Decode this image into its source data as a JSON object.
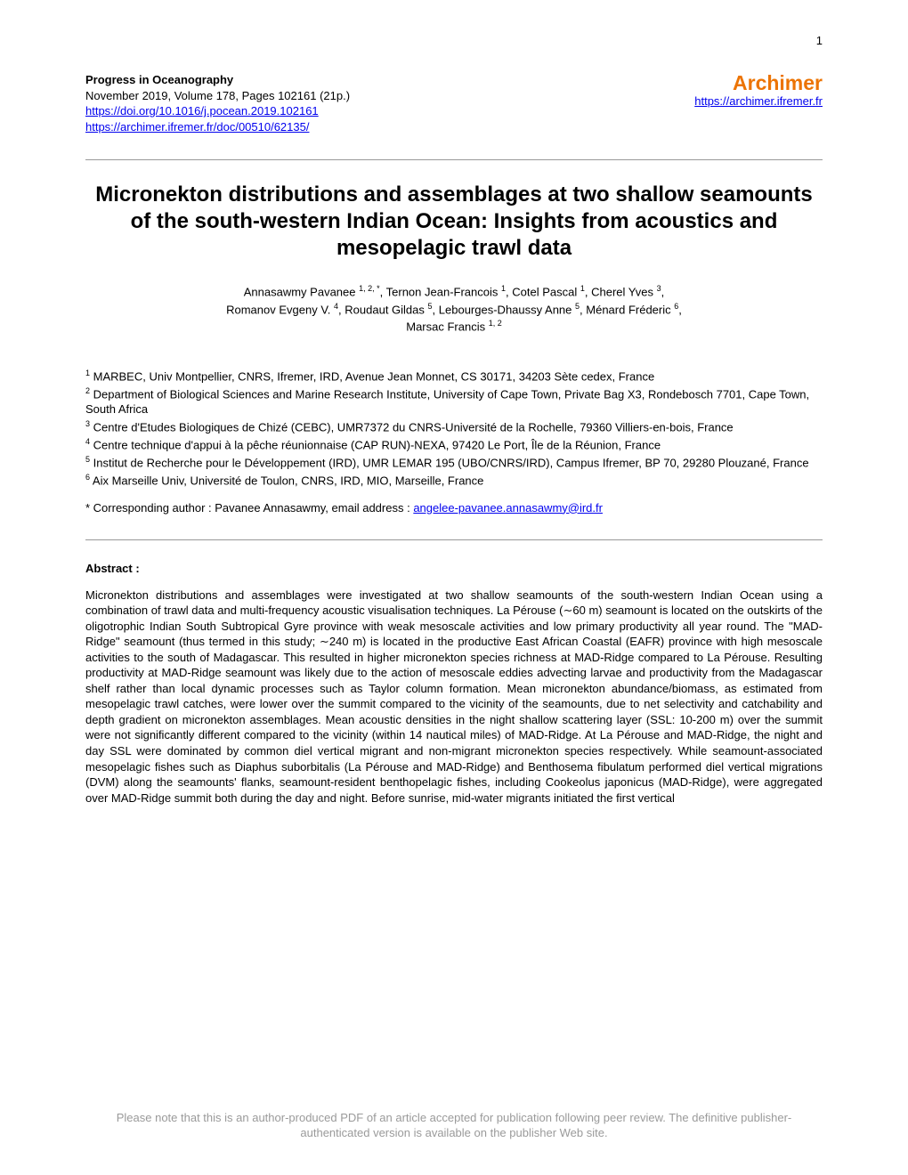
{
  "page_number": "1",
  "journal": {
    "name": "Progress in Oceanography",
    "issue": "November 2019, Volume 178, Pages 102161 (21p.)",
    "doi_link": "https://doi.org/10.1016/j.pocean.2019.102161",
    "archimer_doc_link": "https://archimer.ifremer.fr/doc/00510/62135/"
  },
  "archimer": {
    "title": "Archimer",
    "link": "https://archimer.ifremer.fr",
    "title_color": "#ec7404"
  },
  "title": "Micronekton distributions and assemblages at two shallow seamounts of the south-western Indian Ocean: Insights from acoustics and mesopelagic trawl data",
  "authors": {
    "a1": {
      "name": "Annasawmy Pavanee",
      "sup": "1, 2, *"
    },
    "a2": {
      "name": "Ternon Jean-Francois",
      "sup": "1"
    },
    "a3": {
      "name": "Cotel Pascal",
      "sup": "1"
    },
    "a4": {
      "name": "Cherel Yves",
      "sup": "3"
    },
    "a5": {
      "name": "Romanov Evgeny V.",
      "sup": "4"
    },
    "a6": {
      "name": "Roudaut Gildas",
      "sup": "5"
    },
    "a7": {
      "name": "Lebourges-Dhaussy Anne",
      "sup": "5"
    },
    "a8": {
      "name": "Ménard Fréderic",
      "sup": "6"
    },
    "a9": {
      "name": "Marsac Francis",
      "sup": "1, 2"
    }
  },
  "affiliations": {
    "aff1_sup": "1",
    "aff1": " MARBEC, Univ Montpellier, CNRS, Ifremer, IRD, Avenue Jean Monnet, CS 30171, 34203 Sète cedex, France",
    "aff2_sup": "2",
    "aff2": " Department of Biological Sciences and Marine Research Institute, University of Cape Town, Private Bag X3, Rondebosch 7701, Cape Town, South Africa",
    "aff3_sup": "3",
    "aff3": " Centre d'Etudes Biologiques de Chizé (CEBC), UMR7372 du CNRS-Université de la Rochelle, 79360 Villiers-en-bois, France",
    "aff4_sup": "4",
    "aff4": " Centre technique d'appui à la pêche réunionnaise (CAP RUN)-NEXA, 97420 Le Port, Île de la Réunion, France",
    "aff5_sup": "5",
    "aff5": " Institut de Recherche pour le Développement (IRD), UMR LEMAR 195 (UBO/CNRS/IRD), Campus Ifremer, BP 70, 29280 Plouzané, France",
    "aff6_sup": "6",
    "aff6": " Aix Marseille Univ, Université de Toulon, CNRS, IRD, MIO, Marseille, France"
  },
  "correspondence": {
    "prefix": "* Corresponding author : Pavanee Annasawmy, email address : ",
    "email": "angelee-pavanee.annasawmy@ird.fr"
  },
  "abstract": {
    "heading": "Abstract :",
    "body": "Micronekton distributions and assemblages were investigated at two shallow seamounts of the south-western Indian Ocean using a combination of trawl data and multi-frequency acoustic visualisation techniques. La Pérouse (∼60 m) seamount is located on the outskirts of the oligotrophic Indian South Subtropical Gyre province with weak mesoscale activities and low primary productivity all year round. The \"MAD-Ridge\" seamount (thus termed in this study; ∼240 m) is located in the productive East African Coastal (EAFR) province with high mesoscale activities to the south of Madagascar. This resulted in higher micronekton species richness at MAD-Ridge compared to La Pérouse. Resulting productivity at MAD-Ridge seamount was likely due to the action of mesoscale eddies advecting larvae and productivity from the Madagascar shelf rather than local dynamic processes such as Taylor column formation. Mean micronekton abundance/biomass, as estimated from mesopelagic trawl catches, were lower over the summit compared to the vicinity of the seamounts, due to net selectivity and catchability and depth gradient on micronekton assemblages. Mean acoustic densities in the night shallow scattering layer (SSL: 10-200 m) over the summit were not significantly different compared to the vicinity (within 14 nautical miles) of MAD-Ridge. At La Pérouse and MAD-Ridge, the night and day SSL were dominated by common diel vertical migrant and non-migrant micronekton species respectively. While seamount-associated mesopelagic fishes such as Diaphus suborbitalis (La Pérouse and MAD-Ridge) and Benthosema fibulatum performed diel vertical migrations (DVM) along the seamounts' flanks, seamount-resident benthopelagic fishes, including Cookeolus japonicus (MAD-Ridge), were aggregated over MAD-Ridge summit both during the day and night. Before sunrise, mid-water migrants initiated the first vertical"
  },
  "footer": "Please note that this is an author-produced PDF of an article accepted for publication following peer review. The definitive publisher-authenticated version is available on the publisher Web site."
}
